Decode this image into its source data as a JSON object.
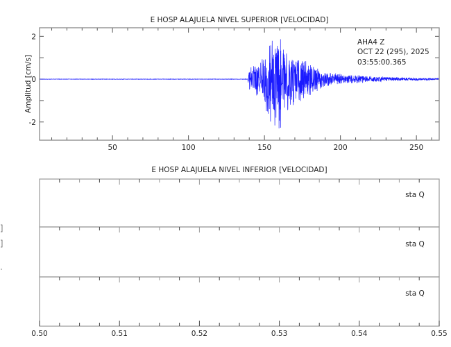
{
  "chart_data": [
    {
      "type": "line",
      "title": "E HOSP ALAJUELA NIVEL SUPERIOR [VELOCIDAD]",
      "xlabel": "",
      "ylabel": "Amplitud [cm/s]",
      "xlim": [
        2,
        265
      ],
      "ylim": [
        -2.85,
        2.4
      ],
      "xticks": [
        50,
        100,
        150,
        200,
        250
      ],
      "yticks": [
        -2,
        0,
        2
      ],
      "grid": false,
      "series_color": "#1a1aff",
      "annotation": [
        "AHA4   Z",
        "OCT 22 (295), 2025",
        "03:55:00.365"
      ],
      "envelope": {
        "x": [
          2,
          139,
          140,
          145,
          150,
          153,
          156,
          160,
          163,
          170,
          180,
          190,
          200,
          220,
          240,
          265
        ],
        "peak_amplitude": [
          0.01,
          0.01,
          0.5,
          0.8,
          1.1,
          2.1,
          2.25,
          2.5,
          1.6,
          1.2,
          0.8,
          0.35,
          0.25,
          0.15,
          0.08,
          0.04
        ]
      }
    },
    {
      "type": "line",
      "title": "E HOSP ALAJUELA NIVEL INFERIOR [VELOCIDAD]",
      "xlim": [
        0.5,
        0.55
      ],
      "xticks": [
        "0.50",
        "0.51",
        "0.52",
        "0.53",
        "0.54",
        "0.55"
      ],
      "grid": false,
      "panels": [
        {
          "label": "sta   Q"
        },
        {
          "label": "sta   Q"
        },
        {
          "label": "sta   Q"
        }
      ]
    }
  ]
}
